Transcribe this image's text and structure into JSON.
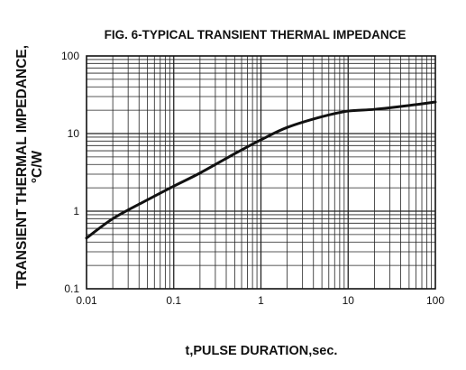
{
  "chart_data": {
    "type": "line",
    "title": "FIG. 6-TYPICAL TRANSIENT THERMAL IMPEDANCE",
    "xlabel": "t,PULSE DURATION,sec.",
    "ylabel_line1": "TRANSIENT THERMAL IMPEDANCE,",
    "ylabel_line2": "°C/W",
    "x_scale": "log",
    "y_scale": "log",
    "xlim": [
      0.01,
      100
    ],
    "ylim": [
      0.1,
      100
    ],
    "x_ticks": [
      {
        "value": 0.01,
        "label": "0.01"
      },
      {
        "value": 0.1,
        "label": "0.1"
      },
      {
        "value": 1,
        "label": "1"
      },
      {
        "value": 10,
        "label": "10"
      },
      {
        "value": 100,
        "label": "100"
      }
    ],
    "y_ticks": [
      {
        "value": 0.1,
        "label": "0.1"
      },
      {
        "value": 1,
        "label": "1"
      },
      {
        "value": 10,
        "label": "10"
      },
      {
        "value": 100,
        "label": "100"
      }
    ],
    "grid": true,
    "series": [
      {
        "x": [
          0.01,
          0.02,
          0.05,
          0.1,
          0.2,
          0.5,
          1,
          2,
          5,
          10,
          20,
          50,
          100
        ],
        "y": [
          0.45,
          0.8,
          1.4,
          2.1,
          3.1,
          5.5,
          8.3,
          12.0,
          16.5,
          19.5,
          20.5,
          23.0,
          25.5
        ]
      }
    ]
  }
}
